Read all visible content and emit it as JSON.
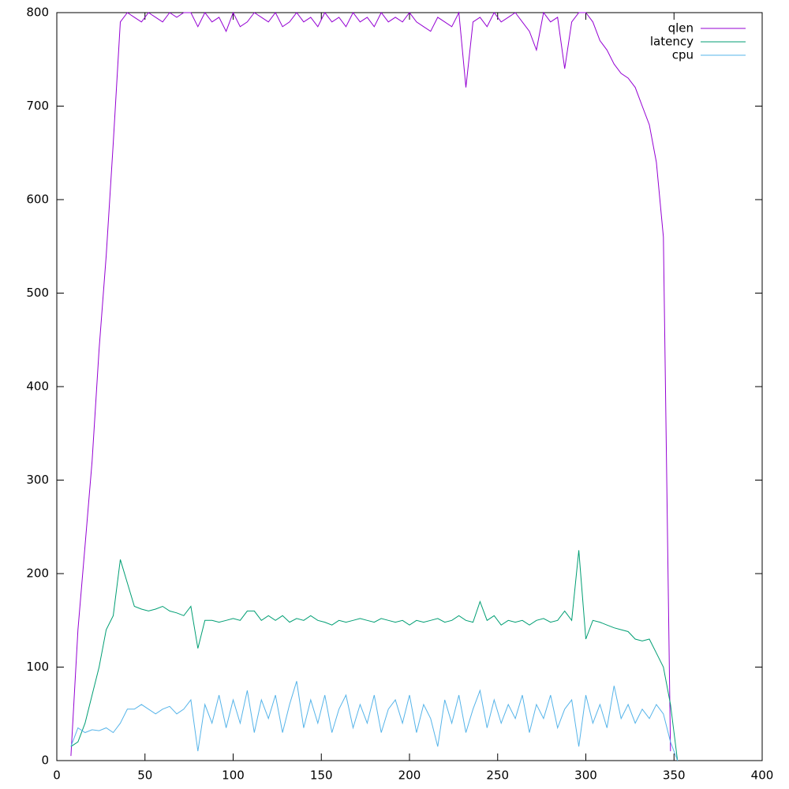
{
  "chart_data": {
    "type": "line",
    "x": [
      8,
      12,
      16,
      20,
      24,
      28,
      32,
      36,
      40,
      44,
      48,
      52,
      56,
      60,
      64,
      68,
      72,
      76,
      80,
      84,
      88,
      92,
      96,
      100,
      104,
      108,
      112,
      116,
      120,
      124,
      128,
      132,
      136,
      140,
      144,
      148,
      152,
      156,
      160,
      164,
      168,
      172,
      176,
      180,
      184,
      188,
      192,
      196,
      200,
      204,
      208,
      212,
      216,
      220,
      224,
      228,
      232,
      236,
      240,
      244,
      248,
      252,
      256,
      260,
      264,
      268,
      272,
      276,
      280,
      284,
      288,
      292,
      296,
      300,
      304,
      308,
      312,
      316,
      320,
      324,
      328,
      332,
      336,
      340,
      344,
      348,
      352
    ],
    "series": [
      {
        "name": "qlen",
        "color": "#9400d3",
        "values": [
          5,
          140,
          230,
          320,
          440,
          540,
          660,
          790,
          800,
          795,
          790,
          800,
          795,
          790,
          800,
          795,
          800,
          800,
          785,
          800,
          790,
          795,
          780,
          800,
          785,
          790,
          800,
          795,
          790,
          800,
          785,
          790,
          800,
          790,
          795,
          785,
          800,
          790,
          795,
          785,
          800,
          790,
          795,
          785,
          800,
          790,
          795,
          790,
          800,
          790,
          785,
          780,
          795,
          790,
          785,
          800,
          720,
          790,
          795,
          785,
          800,
          790,
          795,
          800,
          790,
          780,
          760,
          800,
          790,
          795,
          740,
          790,
          800,
          800,
          790,
          770,
          760,
          745,
          735,
          730,
          720,
          700,
          680,
          640,
          560,
          10,
          null
        ]
      },
      {
        "name": "latency",
        "color": "#009e73",
        "values": [
          15,
          20,
          40,
          70,
          100,
          140,
          155,
          215,
          190,
          165,
          162,
          160,
          162,
          165,
          160,
          158,
          155,
          165,
          120,
          150,
          150,
          148,
          150,
          152,
          150,
          160,
          160,
          150,
          155,
          150,
          155,
          148,
          152,
          150,
          155,
          150,
          148,
          145,
          150,
          148,
          150,
          152,
          150,
          148,
          152,
          150,
          148,
          150,
          145,
          150,
          148,
          150,
          152,
          148,
          150,
          155,
          150,
          148,
          170,
          150,
          155,
          145,
          150,
          148,
          150,
          145,
          150,
          152,
          148,
          150,
          160,
          150,
          225,
          130,
          150,
          148,
          145,
          142,
          140,
          138,
          130,
          128,
          130,
          115,
          100,
          60,
          0
        ]
      },
      {
        "name": "cpu",
        "color": "#56b4e9",
        "values": [
          15,
          35,
          30,
          33,
          32,
          35,
          30,
          40,
          55,
          55,
          60,
          55,
          50,
          55,
          58,
          50,
          55,
          65,
          10,
          60,
          40,
          70,
          35,
          65,
          40,
          75,
          30,
          65,
          45,
          70,
          30,
          60,
          85,
          35,
          65,
          40,
          70,
          30,
          55,
          70,
          35,
          60,
          40,
          70,
          30,
          55,
          65,
          40,
          70,
          30,
          60,
          45,
          15,
          65,
          40,
          70,
          30,
          55,
          75,
          35,
          65,
          40,
          60,
          45,
          70,
          30,
          60,
          45,
          70,
          35,
          55,
          65,
          15,
          70,
          40,
          60,
          35,
          80,
          45,
          60,
          40,
          55,
          45,
          60,
          50,
          20,
          0
        ]
      }
    ],
    "xlim": [
      0,
      400
    ],
    "xticks": [
      0,
      50,
      100,
      150,
      200,
      250,
      300,
      350,
      400
    ],
    "ylim": [
      0,
      800
    ],
    "yticks": [
      0,
      100,
      200,
      300,
      400,
      500,
      600,
      700,
      800
    ],
    "legend": "top-right"
  }
}
